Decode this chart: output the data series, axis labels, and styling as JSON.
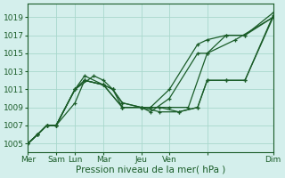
{
  "bg_color": "#d4efec",
  "grid_color": "#a8d8cc",
  "line_color": "#1a5c28",
  "xlabel": "Pression niveau de la mer( hPa )",
  "xlabel_fontsize": 7.5,
  "tick_fontsize": 6.5,
  "ylim": [
    1004,
    1020.5
  ],
  "yticks": [
    1005,
    1007,
    1009,
    1011,
    1013,
    1015,
    1017,
    1019
  ],
  "xlim": [
    0,
    1.0
  ],
  "day_positions": [
    0.0,
    0.115,
    0.192,
    0.308,
    0.462,
    0.577,
    0.731,
    1.0
  ],
  "day_labels": [
    "Mer",
    "Sam",
    "Lun",
    "Mar",
    "Jeu",
    "Ven",
    "",
    "Dim"
  ],
  "series": [
    [
      [
        0.0,
        0.04,
        0.077,
        0.115,
        0.192,
        0.231,
        0.308,
        0.346,
        0.385,
        0.462,
        0.5,
        0.577,
        0.692,
        0.731,
        0.808,
        0.885,
        1.0
      ],
      [
        1005,
        1006,
        1007,
        1007,
        1011,
        1012.5,
        1011.5,
        1011,
        1009.5,
        1009,
        1009,
        1011,
        1016,
        1016.5,
        1017,
        1017,
        1019.5
      ]
    ],
    [
      [
        0.0,
        0.04,
        0.077,
        0.115,
        0.192,
        0.231,
        0.308,
        0.346,
        0.385,
        0.462,
        0.5,
        0.577,
        0.692,
        0.731,
        0.808,
        0.885,
        1.0
      ],
      [
        1005,
        1006,
        1007,
        1007,
        1011,
        1012,
        1011.5,
        1011,
        1009,
        1009,
        1008.5,
        1010,
        1015,
        1015,
        1017,
        1017,
        1019
      ]
    ],
    [
      [
        0.0,
        0.04,
        0.077,
        0.115,
        0.192,
        0.231,
        0.308,
        0.385,
        0.462,
        0.538,
        0.615,
        0.692,
        0.731,
        0.808,
        0.885,
        1.0
      ],
      [
        1005,
        1006,
        1007,
        1007,
        1011,
        1012,
        1011.5,
        1009,
        1009,
        1009,
        1008.5,
        1009,
        1012,
        1012,
        1012,
        1019
      ]
    ],
    [
      [
        0.0,
        0.04,
        0.077,
        0.115,
        0.192,
        0.231,
        0.308,
        0.385,
        0.462,
        0.538,
        0.615,
        0.692,
        0.731,
        0.808,
        0.885,
        1.0
      ],
      [
        1005,
        1006,
        1007,
        1007,
        1009.5,
        1012,
        1011.5,
        1009,
        1009,
        1008.5,
        1008.5,
        1009,
        1012,
        1012,
        1012,
        1019.2
      ]
    ],
    [
      [
        0.0,
        0.04,
        0.077,
        0.115,
        0.192,
        0.269,
        0.308,
        0.346,
        0.385,
        0.462,
        0.5,
        0.577,
        0.654,
        0.731,
        0.846,
        1.0
      ],
      [
        1005,
        1006,
        1007,
        1007,
        1011,
        1012.5,
        1012,
        1011,
        1009.5,
        1009,
        1009,
        1009,
        1009,
        1015,
        1016.5,
        1019
      ]
    ]
  ]
}
